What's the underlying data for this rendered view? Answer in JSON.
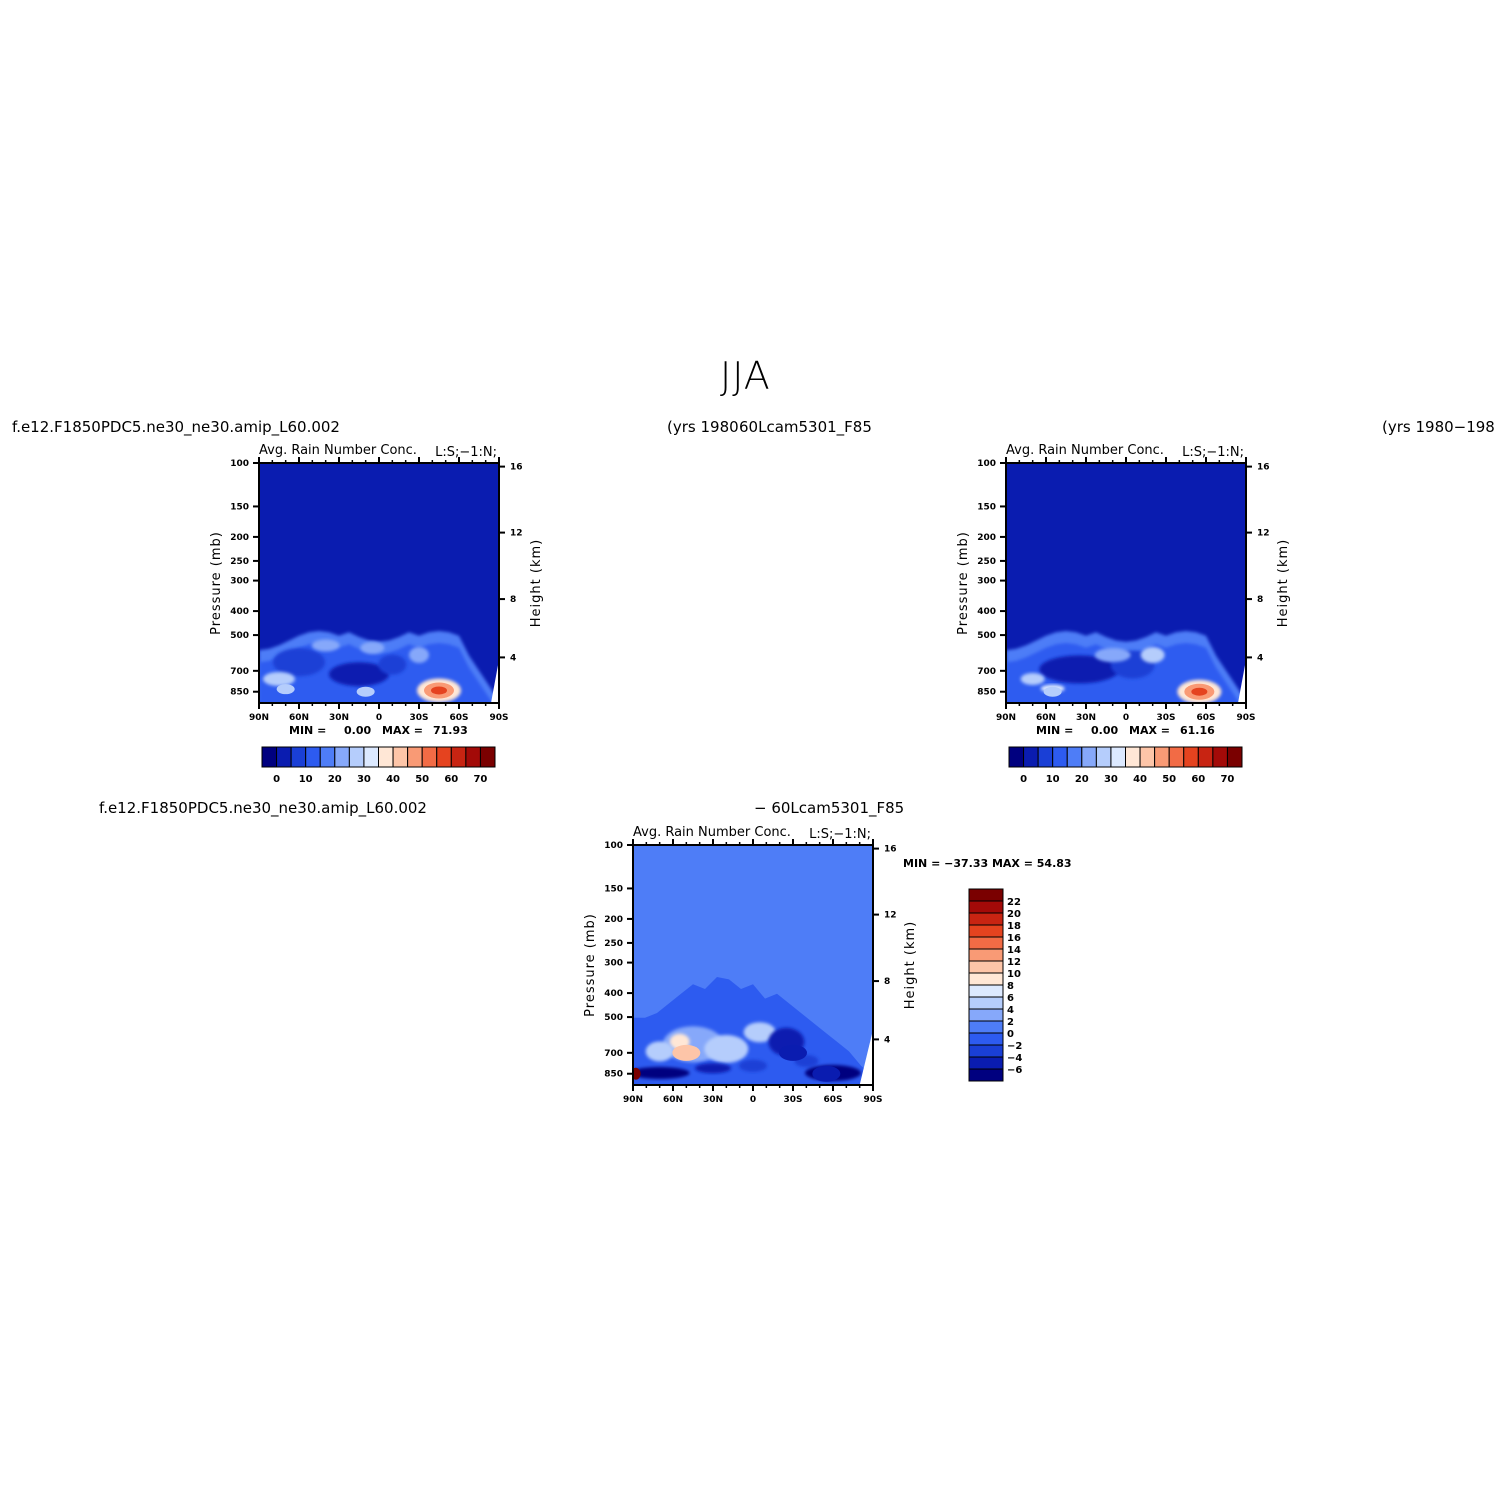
{
  "figure_title": "JJA",
  "case_left": "f.e12.F1850PDC5.ne30_ne30.amip_L60.002",
  "years_left": "(yrs 1980",
  "case_right": "60Lcam5301_F85",
  "years_right": "(yrs 1980−198",
  "case_diff_a": "f.e12.F1850PDC5.ne30_ne30.amip_L60.002",
  "case_diff_b": "− 60Lcam5301_F85",
  "panel_title": "Avg. Rain Number Conc.",
  "panel_subtitle": "L:S;−1:N;",
  "ylabel": "Pressure (mb)",
  "y2label": "Height (km)",
  "pressure_ticks": [
    "100",
    "150",
    "200",
    "250",
    "300",
    "400",
    "500",
    "700",
    "850"
  ],
  "height_ticks": [
    "16",
    "12",
    "8",
    "4"
  ],
  "lat_ticks": [
    "90N",
    "60N",
    "30N",
    "0",
    "30S",
    "60S",
    "90S"
  ],
  "panel_left": {
    "min_label": "MIN =",
    "min": "0.00",
    "max_label": "MAX =",
    "max": "71.93"
  },
  "panel_right": {
    "min_label": "MIN =",
    "min": "0.00",
    "max_label": "MAX =",
    "max": "61.16"
  },
  "panel_diff": {
    "stat_text": "MIN = −37.33   MAX =   54.83"
  },
  "colorbar_main": {
    "labels": [
      "0",
      "10",
      "20",
      "30",
      "40",
      "50",
      "60",
      "70"
    ],
    "colors": [
      "#00007F",
      "#0A1CB0",
      "#1A3FD6",
      "#2D5BF0",
      "#4E7DF7",
      "#86A8FA",
      "#B5CDFC",
      "#DCE9FF",
      "#FFE7D6",
      "#FDC5A8",
      "#F99A75",
      "#F26B45",
      "#E5431F",
      "#C82412",
      "#A30A08",
      "#7A0000"
    ]
  },
  "colorbar_diff": {
    "labels": [
      "22",
      "20",
      "18",
      "16",
      "14",
      "12",
      "10",
      "8",
      "6",
      "4",
      "2",
      "0",
      "−2",
      "−4",
      "−6"
    ],
    "colors": [
      "#7A0000",
      "#A30A08",
      "#C82412",
      "#E5431F",
      "#F26B45",
      "#F99A75",
      "#FDC5A8",
      "#FFE7D6",
      "#DCE9FF",
      "#B5CDFC",
      "#86A8FA",
      "#4E7DF7",
      "#2D5BF0",
      "#1A3FD6",
      "#0A1CB0",
      "#00007F"
    ]
  },
  "chart_data": [
    {
      "type": "heatmap",
      "title": "Avg. Rain Number Conc.",
      "xlabel": "",
      "ylabel": "Pressure (mb)",
      "y2label": "Height (km)",
      "x_ticks": [
        "90N",
        "60N",
        "30N",
        "0",
        "30S",
        "60S",
        "90S"
      ],
      "y_ticks": [
        "100",
        "150",
        "200",
        "250",
        "300",
        "400",
        "500",
        "700",
        "850"
      ],
      "y2_ticks": [
        "16",
        "12",
        "8",
        "4"
      ],
      "background_level": 0,
      "features": [
        {
          "lat": -45,
          "p": 840,
          "value": 60
        },
        {
          "lat": 70,
          "p": 830,
          "value": 30
        },
        {
          "lat": 10,
          "p": 850,
          "value": 30
        }
      ],
      "colorbar_range": [
        0,
        70
      ],
      "min": 0.0,
      "max": 71.93
    },
    {
      "type": "heatmap",
      "title": "Avg. Rain Number Conc.",
      "xlabel": "",
      "ylabel": "Pressure (mb)",
      "y2label": "Height (km)",
      "x_ticks": [
        "90N",
        "60N",
        "30N",
        "0",
        "30S",
        "60S",
        "90S"
      ],
      "y_ticks": [
        "100",
        "150",
        "200",
        "250",
        "300",
        "400",
        "500",
        "700",
        "850"
      ],
      "y2_ticks": [
        "16",
        "12",
        "8",
        "4"
      ],
      "background_level": 0,
      "features": [
        {
          "lat": -55,
          "p": 850,
          "value": 60
        },
        {
          "lat": 55,
          "p": 850,
          "value": 30
        }
      ],
      "colorbar_range": [
        0,
        70
      ],
      "min": 0.0,
      "max": 61.16
    },
    {
      "type": "heatmap",
      "title": "Avg. Rain Number Conc.",
      "xlabel": "",
      "ylabel": "Pressure (mb)",
      "y2label": "Height (km)",
      "x_ticks": [
        "90N",
        "60N",
        "30N",
        "0",
        "30S",
        "60S",
        "90S"
      ],
      "y_ticks": [
        "100",
        "150",
        "200",
        "250",
        "300",
        "400",
        "500",
        "700",
        "850"
      ],
      "y2_ticks": [
        "16",
        "12",
        "8",
        "4"
      ],
      "background_level": 1,
      "features": [
        {
          "lat": 88,
          "p": 850,
          "value": 22
        },
        {
          "lat": 50,
          "p": 700,
          "value": 10
        },
        {
          "lat": -30,
          "p": 700,
          "value": -6
        },
        {
          "lat": -55,
          "p": 850,
          "value": -6
        }
      ],
      "colorbar_range": [
        -6,
        22
      ],
      "min": -37.33,
      "max": 54.83
    }
  ]
}
